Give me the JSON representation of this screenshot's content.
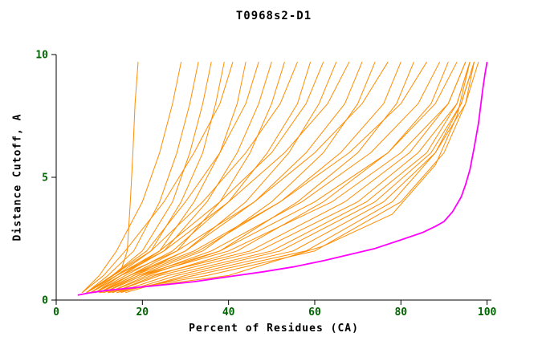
{
  "chart_data": {
    "type": "line",
    "title": "T0968s2-D1",
    "xlabel": "Percent of Residues (CA)",
    "ylabel": "Distance Cutoff, A",
    "xlim": [
      0,
      101
    ],
    "ylim": [
      0,
      10
    ],
    "x_ticks": [
      0,
      20,
      40,
      60,
      80,
      100
    ],
    "y_ticks": [
      0,
      5,
      10
    ],
    "grid": false,
    "legend": "none",
    "colors": {
      "axis": "#000000",
      "tick_label": "#006400",
      "title": "#000000",
      "orange_curve": "#ff8c00",
      "magenta_curve": "#ff00ff"
    },
    "series": [
      {
        "name": "orange-01",
        "color": "#ff8c00",
        "width": 1,
        "points": [
          [
            8,
            0.4
          ],
          [
            15,
            1.2
          ],
          [
            16.5,
            2
          ],
          [
            17.2,
            4
          ],
          [
            17.8,
            6
          ],
          [
            18.3,
            8
          ],
          [
            19,
            9.7
          ]
        ]
      },
      {
        "name": "orange-02",
        "color": "#ff8c00",
        "width": 1,
        "points": [
          [
            6,
            0.3
          ],
          [
            10,
            1
          ],
          [
            14,
            2
          ],
          [
            20,
            4
          ],
          [
            24,
            6
          ],
          [
            27,
            8
          ],
          [
            29,
            9.7
          ]
        ]
      },
      {
        "name": "orange-03",
        "color": "#ff8c00",
        "width": 1,
        "points": [
          [
            7,
            0.3
          ],
          [
            12,
            1
          ],
          [
            18,
            2
          ],
          [
            24,
            4
          ],
          [
            28,
            6
          ],
          [
            31,
            8
          ],
          [
            33,
            9.7
          ]
        ]
      },
      {
        "name": "orange-04",
        "color": "#ff8c00",
        "width": 1,
        "points": [
          [
            7,
            0.3
          ],
          [
            13,
            1
          ],
          [
            20,
            2
          ],
          [
            27,
            4
          ],
          [
            31,
            6
          ],
          [
            34,
            8
          ],
          [
            36,
            9.7
          ]
        ]
      },
      {
        "name": "orange-05",
        "color": "#ff8c00",
        "width": 1,
        "points": [
          [
            8,
            0.3
          ],
          [
            14,
            1
          ],
          [
            22,
            2
          ],
          [
            29,
            4
          ],
          [
            34,
            6
          ],
          [
            37,
            8
          ],
          [
            39,
            9.7
          ]
        ]
      },
      {
        "name": "orange-06",
        "color": "#ff8c00",
        "width": 1,
        "points": [
          [
            6,
            0.3
          ],
          [
            11,
            1
          ],
          [
            16,
            2
          ],
          [
            25,
            4
          ],
          [
            32,
            6
          ],
          [
            38,
            8
          ],
          [
            41,
            9.7
          ]
        ]
      },
      {
        "name": "orange-07",
        "color": "#ff8c00",
        "width": 1,
        "points": [
          [
            9,
            0.3
          ],
          [
            15,
            1
          ],
          [
            24,
            2
          ],
          [
            32,
            4
          ],
          [
            38,
            6
          ],
          [
            42,
            8
          ],
          [
            44,
            9.7
          ]
        ]
      },
      {
        "name": "orange-08",
        "color": "#ff8c00",
        "width": 1,
        "points": [
          [
            7,
            0.3
          ],
          [
            13,
            1
          ],
          [
            21,
            2
          ],
          [
            30,
            4
          ],
          [
            38,
            6
          ],
          [
            44,
            8
          ],
          [
            47,
            9.7
          ]
        ]
      },
      {
        "name": "orange-09",
        "color": "#ff8c00",
        "width": 1,
        "points": [
          [
            8,
            0.3
          ],
          [
            15,
            1
          ],
          [
            25,
            2
          ],
          [
            35,
            4
          ],
          [
            42,
            6
          ],
          [
            47,
            8
          ],
          [
            50,
            9.7
          ]
        ]
      },
      {
        "name": "orange-10",
        "color": "#ff8c00",
        "width": 1,
        "points": [
          [
            10,
            0.3
          ],
          [
            17,
            1
          ],
          [
            28,
            2
          ],
          [
            38,
            4
          ],
          [
            45,
            6
          ],
          [
            50,
            8
          ],
          [
            53,
            9.7
          ]
        ]
      },
      {
        "name": "orange-11",
        "color": "#ff8c00",
        "width": 1,
        "points": [
          [
            7,
            0.3
          ],
          [
            13,
            1
          ],
          [
            22,
            2
          ],
          [
            34,
            4
          ],
          [
            44,
            6
          ],
          [
            52,
            8
          ],
          [
            56,
            9.7
          ]
        ]
      },
      {
        "name": "orange-12",
        "color": "#ff8c00",
        "width": 1,
        "points": [
          [
            9,
            0.3
          ],
          [
            16,
            1
          ],
          [
            27,
            2
          ],
          [
            40,
            4
          ],
          [
            49,
            6
          ],
          [
            56,
            8
          ],
          [
            59,
            9.7
          ]
        ]
      },
      {
        "name": "orange-13",
        "color": "#ff8c00",
        "width": 1,
        "points": [
          [
            8,
            0.3
          ],
          [
            14,
            1
          ],
          [
            24,
            2
          ],
          [
            38,
            4
          ],
          [
            50,
            6
          ],
          [
            58,
            8
          ],
          [
            62,
            9.7
          ]
        ]
      },
      {
        "name": "orange-14",
        "color": "#ff8c00",
        "width": 1,
        "points": [
          [
            10,
            0.3
          ],
          [
            18,
            1
          ],
          [
            30,
            2
          ],
          [
            44,
            4
          ],
          [
            54,
            6
          ],
          [
            61,
            8
          ],
          [
            65,
            9.7
          ]
        ]
      },
      {
        "name": "orange-15",
        "color": "#ff8c00",
        "width": 1,
        "points": [
          [
            7,
            0.3
          ],
          [
            14,
            1
          ],
          [
            25,
            2
          ],
          [
            40,
            4
          ],
          [
            53,
            6
          ],
          [
            63,
            8
          ],
          [
            68,
            9.7
          ]
        ]
      },
      {
        "name": "orange-16",
        "color": "#ff8c00",
        "width": 1,
        "points": [
          [
            9,
            0.3
          ],
          [
            17,
            1
          ],
          [
            30,
            2
          ],
          [
            46,
            4
          ],
          [
            58,
            6
          ],
          [
            67,
            8
          ],
          [
            71,
            9.7
          ]
        ]
      },
      {
        "name": "orange-17",
        "color": "#ff8c00",
        "width": 1,
        "points": [
          [
            11,
            0.3
          ],
          [
            19,
            1
          ],
          [
            34,
            2
          ],
          [
            50,
            4
          ],
          [
            62,
            6
          ],
          [
            70,
            8
          ],
          [
            74,
            9.7
          ]
        ]
      },
      {
        "name": "orange-18",
        "color": "#ff8c00",
        "width": 1,
        "points": [
          [
            8,
            0.3
          ],
          [
            15,
            1
          ],
          [
            28,
            2
          ],
          [
            46,
            4
          ],
          [
            60,
            6
          ],
          [
            71,
            8
          ],
          [
            77,
            9.7
          ]
        ]
      },
      {
        "name": "orange-19",
        "color": "#ff8c00",
        "width": 1,
        "points": [
          [
            10,
            0.3
          ],
          [
            18,
            1
          ],
          [
            33,
            2
          ],
          [
            52,
            4
          ],
          [
            66,
            6
          ],
          [
            76,
            8
          ],
          [
            80,
            9.7
          ]
        ]
      },
      {
        "name": "orange-20",
        "color": "#ff8c00",
        "width": 1,
        "points": [
          [
            12,
            0.3
          ],
          [
            21,
            1
          ],
          [
            38,
            2
          ],
          [
            56,
            4
          ],
          [
            70,
            6
          ],
          [
            79,
            8
          ],
          [
            83,
            9.7
          ]
        ]
      },
      {
        "name": "orange-21",
        "color": "#ff8c00",
        "width": 1,
        "points": [
          [
            9,
            0.3
          ],
          [
            17,
            1
          ],
          [
            32,
            2
          ],
          [
            52,
            4
          ],
          [
            68,
            6
          ],
          [
            80,
            8
          ],
          [
            86,
            9.7
          ]
        ]
      },
      {
        "name": "orange-22",
        "color": "#ff8c00",
        "width": 1,
        "points": [
          [
            11,
            0.3
          ],
          [
            20,
            1
          ],
          [
            36,
            2
          ],
          [
            57,
            4
          ],
          [
            73,
            6
          ],
          [
            84,
            8
          ],
          [
            89,
            9.7
          ]
        ]
      },
      {
        "name": "orange-23",
        "color": "#ff8c00",
        "width": 1,
        "points": [
          [
            13,
            0.3
          ],
          [
            23,
            1
          ],
          [
            42,
            2
          ],
          [
            62,
            4
          ],
          [
            77,
            6
          ],
          [
            87,
            8
          ],
          [
            91,
            9.7
          ]
        ]
      },
      {
        "name": "orange-24",
        "color": "#ff8c00",
        "width": 1,
        "points": [
          [
            10,
            0.3
          ],
          [
            19,
            1
          ],
          [
            38,
            2
          ],
          [
            60,
            4
          ],
          [
            77,
            6
          ],
          [
            88,
            8
          ],
          [
            93,
            9.7
          ]
        ]
      },
      {
        "name": "orange-25",
        "color": "#ff8c00",
        "width": 1,
        "points": [
          [
            12,
            0.3
          ],
          [
            22,
            1
          ],
          [
            45,
            2
          ],
          [
            67,
            4
          ],
          [
            82,
            6
          ],
          [
            91,
            8
          ],
          [
            95,
            9.7
          ]
        ]
      },
      {
        "name": "orange-26",
        "color": "#ff8c00",
        "width": 1,
        "points": [
          [
            14,
            0.3
          ],
          [
            26,
            1
          ],
          [
            50,
            2
          ],
          [
            72,
            4
          ],
          [
            86,
            6
          ],
          [
            93,
            8
          ],
          [
            96,
            9.7
          ]
        ]
      },
      {
        "name": "orange-27",
        "color": "#ff8c00",
        "width": 1,
        "points": [
          [
            16,
            0.3
          ],
          [
            30,
            1
          ],
          [
            55,
            2
          ],
          [
            76,
            4
          ],
          [
            88,
            6
          ],
          [
            95,
            8
          ],
          [
            97,
            9.7
          ]
        ]
      },
      {
        "name": "orange-28",
        "color": "#ff8c00",
        "width": 1,
        "points": [
          [
            11,
            0.3
          ],
          [
            20,
            1
          ],
          [
            40,
            2
          ],
          [
            64,
            4
          ],
          [
            80,
            6
          ],
          [
            91,
            8
          ],
          [
            95,
            9.7
          ]
        ]
      },
      {
        "name": "orange-29",
        "color": "#ff8c00",
        "width": 1,
        "points": [
          [
            13,
            0.3
          ],
          [
            24,
            1
          ],
          [
            47,
            2
          ],
          [
            70,
            4
          ],
          [
            84,
            6
          ],
          [
            93,
            8
          ],
          [
            96,
            9.7
          ]
        ]
      },
      {
        "name": "orange-30",
        "color": "#ff8c00",
        "width": 1,
        "points": [
          [
            15,
            0.3
          ],
          [
            28,
            1
          ],
          [
            52,
            2
          ],
          [
            74,
            4
          ],
          [
            87,
            6
          ],
          [
            94,
            8
          ],
          [
            97,
            9.7
          ]
        ]
      },
      {
        "name": "orange-31",
        "color": "#ff8c00",
        "width": 1,
        "points": [
          [
            14,
            0.3
          ],
          [
            32,
            1
          ],
          [
            58,
            2
          ],
          [
            78,
            4
          ],
          [
            88,
            6
          ],
          [
            94,
            8
          ],
          [
            97,
            9.7
          ]
        ]
      },
      {
        "name": "orange-32",
        "color": "#ff8c00",
        "width": 1,
        "points": [
          [
            12,
            0.3
          ],
          [
            35,
            1
          ],
          [
            60,
            2
          ],
          [
            80,
            4
          ],
          [
            90,
            6
          ],
          [
            95,
            8
          ],
          [
            98,
            9.7
          ]
        ]
      },
      {
        "name": "orange-33",
        "color": "#ff8c00",
        "width": 1,
        "points": [
          [
            10,
            0.3
          ],
          [
            40,
            1
          ],
          [
            62,
            2.2
          ],
          [
            78,
            3.5
          ],
          [
            88,
            5.5
          ],
          [
            93,
            7.5
          ],
          [
            96,
            9.7
          ]
        ]
      },
      {
        "name": "magenta",
        "color": "#ff00ff",
        "width": 1.8,
        "points": [
          [
            5,
            0.2
          ],
          [
            8,
            0.3
          ],
          [
            12,
            0.4
          ],
          [
            18,
            0.5
          ],
          [
            25,
            0.62
          ],
          [
            32,
            0.75
          ],
          [
            40,
            0.95
          ],
          [
            48,
            1.15
          ],
          [
            55,
            1.35
          ],
          [
            62,
            1.6
          ],
          [
            68,
            1.85
          ],
          [
            74,
            2.1
          ],
          [
            80,
            2.45
          ],
          [
            85,
            2.75
          ],
          [
            88,
            3.0
          ],
          [
            90,
            3.2
          ],
          [
            92,
            3.6
          ],
          [
            94,
            4.2
          ],
          [
            95,
            4.7
          ],
          [
            96,
            5.3
          ],
          [
            97,
            6.2
          ],
          [
            98,
            7.2
          ],
          [
            99,
            8.6
          ],
          [
            99.5,
            9.2
          ],
          [
            100,
            9.7
          ]
        ]
      }
    ]
  }
}
